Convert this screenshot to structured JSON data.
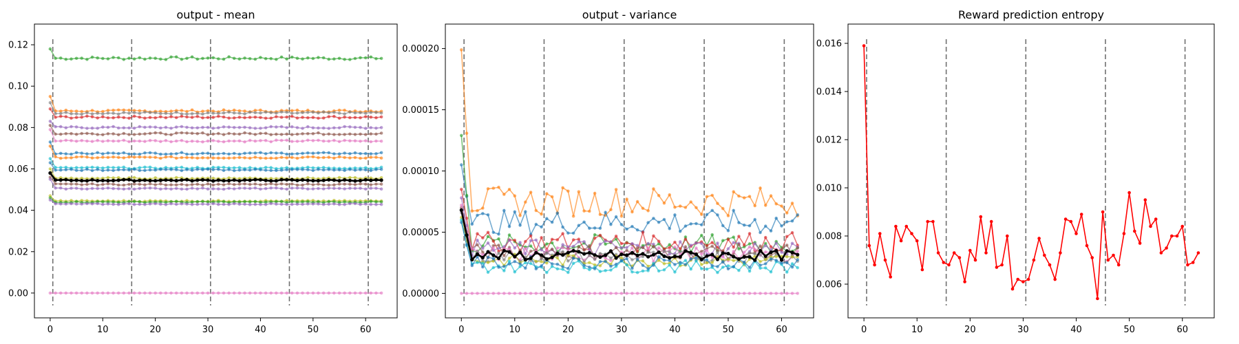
{
  "chart_data": [
    {
      "type": "line",
      "title": "output - mean",
      "xlabel": "",
      "ylabel": "",
      "xlim": [
        -3,
        66
      ],
      "ylim": [
        -0.012,
        0.13
      ],
      "xticks": [
        "0",
        "10",
        "20",
        "30",
        "40",
        "50",
        "60"
      ],
      "yticks": [
        "0.00",
        "0.02",
        "0.04",
        "0.06",
        "0.08",
        "0.10",
        "0.12"
      ],
      "vlines": [
        0.5,
        15.5,
        30.5,
        45.5,
        60.5
      ],
      "grid": false,
      "x": "0..63 (64 steps)",
      "series": [
        {
          "color": "#2ca02c",
          "first": 0.118,
          "level": 0.1135
        },
        {
          "color": "#ff7f0e",
          "first": 0.095,
          "level": 0.088
        },
        {
          "color": "#7f7f7f",
          "first": 0.092,
          "level": 0.087
        },
        {
          "color": "#d62728",
          "first": 0.089,
          "level": 0.085
        },
        {
          "color": "#9467bd",
          "first": 0.083,
          "level": 0.08
        },
        {
          "color": "#8c564b",
          "first": 0.081,
          "level": 0.077
        },
        {
          "color": "#e377c2",
          "first": 0.079,
          "level": 0.0735
        },
        {
          "color": "#1f77b4",
          "first": 0.073,
          "level": 0.0675
        },
        {
          "color": "#ff7f0e",
          "first": 0.071,
          "level": 0.0655
        },
        {
          "color": "#17becf",
          "first": 0.065,
          "level": 0.0605
        },
        {
          "color": "#1f77b4",
          "first": 0.063,
          "level": 0.0595
        },
        {
          "color": "#bcbd22",
          "first": 0.06,
          "level": 0.0555
        },
        {
          "color": "#000000",
          "first": 0.058,
          "level": 0.0545
        },
        {
          "color": "#8c564b",
          "first": 0.056,
          "level": 0.0525
        },
        {
          "color": "#9467bd",
          "first": 0.055,
          "level": 0.0505
        },
        {
          "color": "#bcbd22",
          "first": 0.047,
          "level": 0.0445
        },
        {
          "color": "#2ca02c",
          "first": 0.046,
          "level": 0.044
        },
        {
          "color": "#9467bd",
          "first": 0.045,
          "level": 0.043
        },
        {
          "color": "#e377c2",
          "first": 0.0,
          "level": 0.0
        }
      ]
    },
    {
      "type": "line",
      "title": "output - variance",
      "xlabel": "",
      "ylabel": "",
      "xlim": [
        -3,
        66
      ],
      "ylim": [
        -2e-05,
        0.00022
      ],
      "xticks": [
        "0",
        "10",
        "20",
        "30",
        "40",
        "50",
        "60"
      ],
      "yticks": [
        "0.00000",
        "0.00005",
        "0.00010",
        "0.00015",
        "0.00020"
      ],
      "vlines": [
        0.5,
        15.5,
        30.5,
        45.5,
        60.5
      ],
      "grid": false,
      "x": "0..63 (64 steps)",
      "series": [
        {
          "color": "#ff7f0e",
          "first": 0.000199,
          "level": 7.5e-05,
          "spread": 1.2e-05
        },
        {
          "color": "#1f77b4",
          "first": 0.000105,
          "level": 5.8e-05,
          "spread": 1e-05
        },
        {
          "color": "#2ca02c",
          "first": 0.000129,
          "level": 4e-05,
          "spread": 8e-06
        },
        {
          "color": "#d62728",
          "first": 8.5e-05,
          "level": 4.2e-05,
          "spread": 8e-06
        },
        {
          "color": "#9467bd",
          "first": 7.8e-05,
          "level": 3.7e-05,
          "spread": 7e-06
        },
        {
          "color": "#8c564b",
          "first": 7e-05,
          "level": 3.4e-05,
          "spread": 6e-06
        },
        {
          "color": "#e377c2",
          "first": 7.2e-05,
          "level": 3.2e-05,
          "spread": 6e-06
        },
        {
          "color": "#7f7f7f",
          "first": 6.6e-05,
          "level": 3e-05,
          "spread": 5e-06
        },
        {
          "color": "#bcbd22",
          "first": 6.2e-05,
          "level": 2.7e-05,
          "spread": 5e-06
        },
        {
          "color": "#17becf",
          "first": 6e-05,
          "level": 2.2e-05,
          "spread": 5e-06
        },
        {
          "color": "#1f77b4",
          "first": 5.8e-05,
          "level": 2.5e-05,
          "spread": 5e-06
        },
        {
          "color": "#000000",
          "first": 6.8e-05,
          "level": 3.1e-05,
          "spread": 4e-06
        },
        {
          "color": "#e377c2",
          "first": 0.0,
          "level": 0.0,
          "spread": 0.0
        }
      ]
    },
    {
      "type": "line",
      "title": "Reward prediction entropy",
      "xlabel": "",
      "ylabel": "",
      "xlim": [
        -3,
        66
      ],
      "ylim": [
        0.0046,
        0.0168
      ],
      "xticks": [
        "0",
        "10",
        "20",
        "30",
        "40",
        "50",
        "60"
      ],
      "yticks": [
        "0.006",
        "0.008",
        "0.010",
        "0.012",
        "0.014",
        "0.016"
      ],
      "vlines": [
        0.5,
        15.5,
        30.5,
        45.5,
        60.5
      ],
      "grid": false,
      "series": [
        {
          "color": "#ff0000",
          "x": [
            0,
            1,
            2,
            3,
            4,
            5,
            6,
            7,
            8,
            9,
            10,
            11,
            12,
            13,
            14,
            15,
            16,
            17,
            18,
            19,
            20,
            21,
            22,
            23,
            24,
            25,
            26,
            27,
            28,
            29,
            30,
            31,
            32,
            33,
            34,
            35,
            36,
            37,
            38,
            39,
            40,
            41,
            42,
            43,
            44,
            45,
            46,
            47,
            48,
            49,
            50,
            51,
            52,
            53,
            54,
            55,
            56,
            57,
            58,
            59,
            60,
            61,
            62,
            63
          ],
          "y": [
            0.0159,
            0.0076,
            0.0068,
            0.0081,
            0.007,
            0.0063,
            0.0084,
            0.0078,
            0.0084,
            0.0081,
            0.0078,
            0.0066,
            0.0086,
            0.0086,
            0.0073,
            0.0069,
            0.0068,
            0.0073,
            0.0071,
            0.0061,
            0.0074,
            0.007,
            0.0088,
            0.0073,
            0.0086,
            0.0067,
            0.0068,
            0.008,
            0.0058,
            0.0062,
            0.0061,
            0.0062,
            0.007,
            0.0079,
            0.0072,
            0.0068,
            0.0062,
            0.0073,
            0.0087,
            0.0086,
            0.0081,
            0.0089,
            0.0076,
            0.0071,
            0.0054,
            0.009,
            0.007,
            0.0072,
            0.0068,
            0.0081,
            0.0098,
            0.0082,
            0.0077,
            0.0095,
            0.0084,
            0.0087,
            0.0073,
            0.0075,
            0.008,
            0.008,
            0.0084,
            0.0068,
            0.0069,
            0.0073
          ]
        }
      ]
    }
  ]
}
